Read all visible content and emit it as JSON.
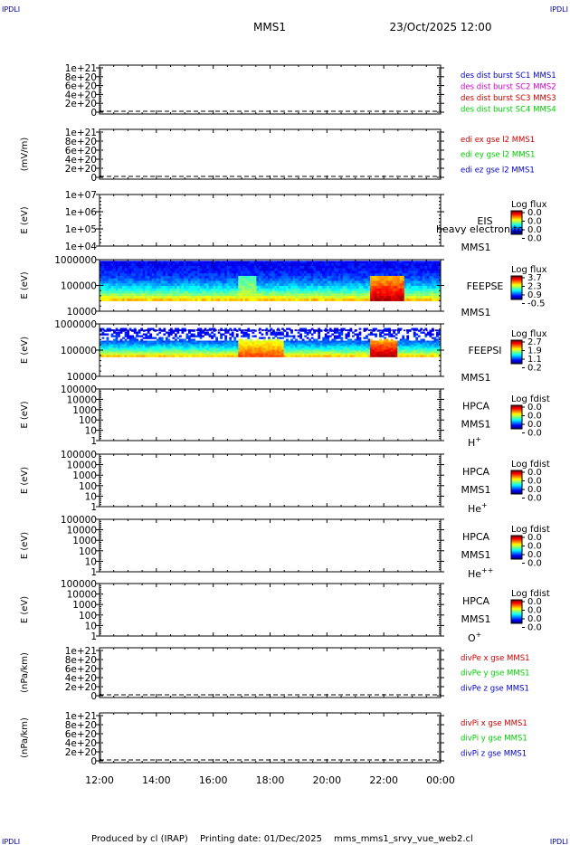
{
  "header": {
    "corner_tag": "IPDLI",
    "title": "MMS1",
    "datetime": "23/Oct/2025 12:00"
  },
  "footer": {
    "produced_by": "Produced by cl (IRAP)",
    "printing_date": "Printing date: 01/Dec/2025",
    "script_name": "mms_mms1_srvy_vue_web2.cl"
  },
  "x_axis": {
    "ticks": [
      "12:00",
      "14:00",
      "16:00",
      "18:00",
      "20:00",
      "22:00",
      "00:00"
    ],
    "range_hours": [
      12,
      24
    ]
  },
  "chart_data": [
    {
      "type": "line",
      "panel": "des-dist-burst",
      "ylabel": "",
      "yticks": [
        "0",
        "2e+20",
        "4e+20",
        "6e+20",
        "8e+20",
        "1e+21"
      ],
      "ylim": [
        0,
        1.1e+21
      ],
      "dashed_zero_line": true,
      "series": [
        {
          "name": "des dist burst SC1 MMS1",
          "color": "#0000cc",
          "values": []
        },
        {
          "name": "des dist burst SC2 MMS2",
          "color": "#cc00cc",
          "values": []
        },
        {
          "name": "des dist burst SC3 MMS3",
          "color": "#cc0000",
          "values": []
        },
        {
          "name": "des dist burst SC4 MMS4",
          "color": "#00cc00",
          "values": []
        }
      ]
    },
    {
      "type": "line",
      "panel": "edi-e-gse",
      "ylabel": "(mV/m)",
      "yticks": [
        "0",
        "2e+20",
        "4e+20",
        "6e+20",
        "8e+20",
        "1e+21"
      ],
      "ylim": [
        0,
        1.1e+21
      ],
      "dashed_zero_line": true,
      "series": [
        {
          "name": "edi ex gse l2 MMS1",
          "color": "#cc0000",
          "values": []
        },
        {
          "name": "edi ey gse l2 MMS1",
          "color": "#00cc00",
          "values": []
        },
        {
          "name": "edi ez gse l2 MMS1",
          "color": "#0000cc",
          "values": []
        }
      ]
    },
    {
      "type": "heatmap",
      "panel": "eis",
      "ylabel": "E (eV)",
      "log_y": true,
      "yticks": [
        "1e+04",
        "1e+05",
        "1e+06",
        "1e+07"
      ],
      "right_labels": [
        "EIS",
        "MMS1"
      ],
      "overlay_text": "heavy electron to",
      "colorbar": {
        "title": "Log flux",
        "ticks": [
          "0.0",
          "0.0",
          "0.0",
          "0.0"
        ]
      },
      "filled": false
    },
    {
      "type": "heatmap",
      "panel": "feeps-e",
      "ylabel": "E (eV)",
      "log_y": true,
      "yticks": [
        "10000",
        "100000",
        "1000000"
      ],
      "right_labels": [
        "FEEPSE",
        "MMS1"
      ],
      "colorbar": {
        "title": "Log flux",
        "ticks": [
          "3.7",
          "2.3",
          "0.9",
          "-0.5"
        ]
      },
      "filled": true,
      "energy_range_eV": [
        25000,
        900000
      ],
      "enhancements": [
        {
          "start_hour": 16.9,
          "end_hour": 17.5,
          "level": 0.6
        },
        {
          "start_hour": 21.5,
          "end_hour": 22.7,
          "level": 0.95
        }
      ]
    },
    {
      "type": "heatmap",
      "panel": "feeps-i",
      "ylabel": "E (eV)",
      "log_y": true,
      "yticks": [
        "10000",
        "100000",
        "1000000"
      ],
      "right_labels": [
        "FEEPSI",
        "MMS1"
      ],
      "colorbar": {
        "title": "Log flux",
        "ticks": [
          "2.7",
          "1.9",
          "1.1",
          "0.2"
        ]
      },
      "filled": true,
      "energy_range_eV": [
        55000,
        700000
      ],
      "enhancements": [
        {
          "start_hour": 16.9,
          "end_hour": 18.5,
          "level": 0.8
        },
        {
          "start_hour": 21.5,
          "end_hour": 22.5,
          "level": 0.95
        }
      ]
    },
    {
      "type": "heatmap",
      "panel": "hpca-h",
      "ylabel": "E (eV)",
      "log_y": true,
      "yticks": [
        "1",
        "10",
        "100",
        "1000",
        "10000",
        "100000"
      ],
      "right_labels": [
        "HPCA",
        "MMS1"
      ],
      "species": "H",
      "charge": "+",
      "colorbar": {
        "title": "Log fdist",
        "ticks": [
          "0.0",
          "0.0",
          "0.0",
          "0.0"
        ]
      },
      "filled": false
    },
    {
      "type": "heatmap",
      "panel": "hpca-he",
      "ylabel": "E (eV)",
      "log_y": true,
      "yticks": [
        "1",
        "10",
        "100",
        "1000",
        "10000",
        "100000"
      ],
      "right_labels": [
        "HPCA",
        "MMS1"
      ],
      "species": "He",
      "charge": "+",
      "colorbar": {
        "title": "Log fdist",
        "ticks": [
          "0.0",
          "0.0",
          "0.0",
          "0.0"
        ]
      },
      "filled": false
    },
    {
      "type": "heatmap",
      "panel": "hpca-he2",
      "ylabel": "E (eV)",
      "log_y": true,
      "yticks": [
        "1",
        "10",
        "100",
        "1000",
        "10000",
        "100000"
      ],
      "right_labels": [
        "HPCA",
        "MMS1"
      ],
      "species": "He",
      "charge": "++",
      "colorbar": {
        "title": "Log fdist",
        "ticks": [
          "0.0",
          "0.0",
          "0.0",
          "0.0"
        ]
      },
      "filled": false
    },
    {
      "type": "heatmap",
      "panel": "hpca-o",
      "ylabel": "E (eV)",
      "log_y": true,
      "yticks": [
        "1",
        "10",
        "100",
        "1000",
        "10000",
        "100000"
      ],
      "right_labels": [
        "HPCA",
        "MMS1"
      ],
      "species": "O",
      "charge": "+",
      "colorbar": {
        "title": "Log fdist",
        "ticks": [
          "0.0",
          "0.0",
          "0.0",
          "0.0"
        ]
      },
      "filled": false
    },
    {
      "type": "line",
      "panel": "divpe",
      "ylabel": "(nPa/km)",
      "yticks": [
        "0",
        "2e+20",
        "4e+20",
        "6e+20",
        "8e+20",
        "1e+21"
      ],
      "ylim": [
        0,
        1.1e+21
      ],
      "dashed_zero_line": true,
      "series": [
        {
          "name": "divPe x gse MMS1",
          "color": "#cc0000",
          "values": []
        },
        {
          "name": "divPe y gse MMS1",
          "color": "#00cc00",
          "values": []
        },
        {
          "name": "divPe z gse MMS1",
          "color": "#0000cc",
          "values": []
        }
      ]
    },
    {
      "type": "line",
      "panel": "divpi",
      "ylabel": "(nPa/km)",
      "yticks": [
        "0",
        "2e+20",
        "4e+20",
        "6e+20",
        "8e+20",
        "1e+21"
      ],
      "ylim": [
        0,
        1.1e+21
      ],
      "dashed_zero_line": true,
      "series": [
        {
          "name": "divPi x gse MMS1",
          "color": "#cc0000",
          "values": []
        },
        {
          "name": "divPi y gse MMS1",
          "color": "#00cc00",
          "values": []
        },
        {
          "name": "divPi z gse MMS1",
          "color": "#0000cc",
          "values": []
        }
      ]
    }
  ]
}
